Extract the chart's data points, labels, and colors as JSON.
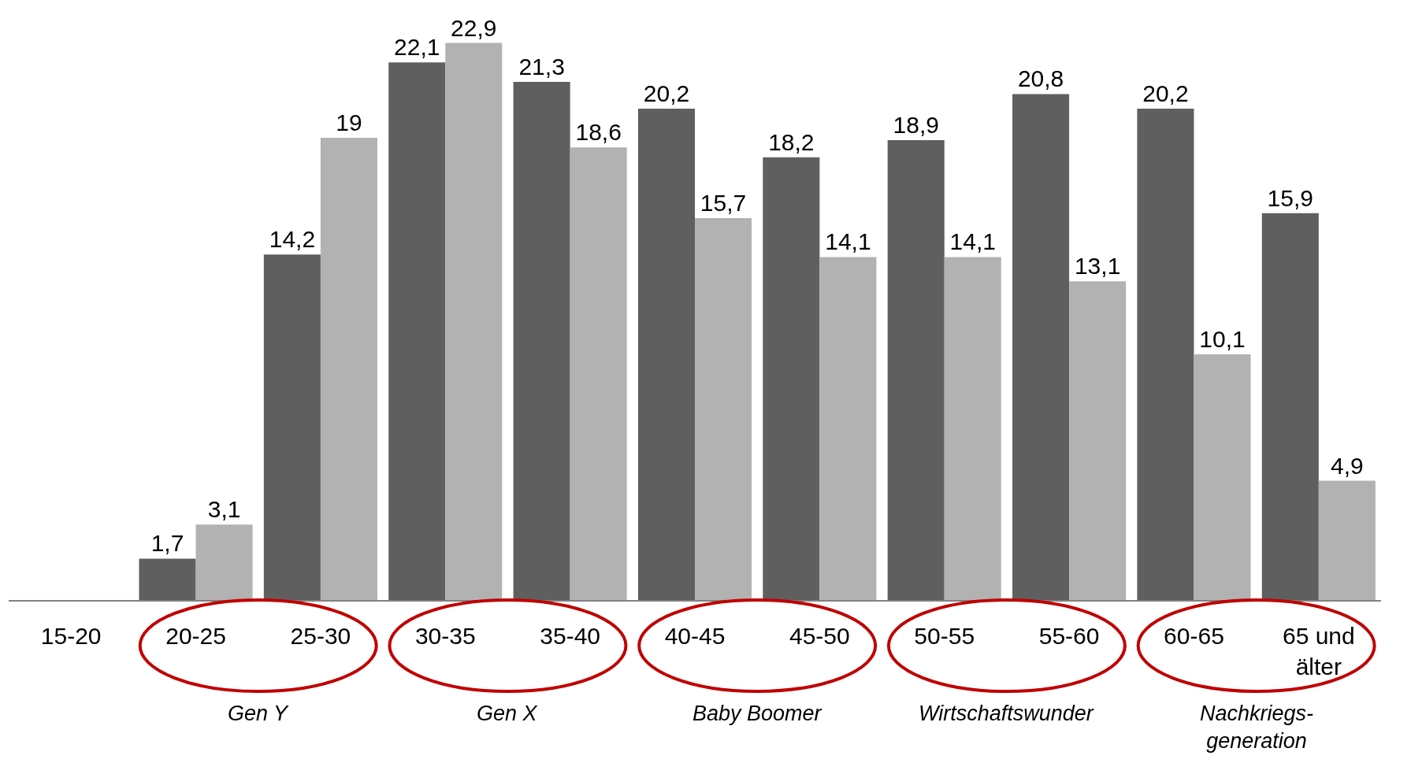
{
  "chart_data": {
    "type": "bar",
    "categories": [
      "15-20",
      "20-25",
      "25-30",
      "30-35",
      "35-40",
      "40-45",
      "45-50",
      "50-55",
      "55-60",
      "60-65",
      "65 und\nälter"
    ],
    "series": [
      {
        "color": "#5f5f5f",
        "values": [
          null,
          1.7,
          14.2,
          22.1,
          21.3,
          20.2,
          18.2,
          18.9,
          20.8,
          20.2,
          15.9
        ],
        "value_labels": [
          null,
          "1,7",
          "14,2",
          "22,1",
          "21,3",
          "20,2",
          "18,2",
          "18,9",
          "20,8",
          "20,2",
          "15,9"
        ]
      },
      {
        "color": "#b2b2b2",
        "values": [
          null,
          3.1,
          19,
          22.9,
          18.6,
          15.7,
          14.1,
          14.1,
          13.1,
          10.1,
          4.9
        ],
        "value_labels": [
          null,
          "3,1",
          "19",
          "22,9",
          "18,6",
          "15,7",
          "14,1",
          "14,1",
          "13,1",
          "10,1",
          "4,9"
        ]
      }
    ],
    "annotations": [
      "Gen Y",
      "Gen X",
      "Baby Boomer",
      "Wirtschaftswunder",
      "Nachkriegs-\ngeneration"
    ]
  }
}
